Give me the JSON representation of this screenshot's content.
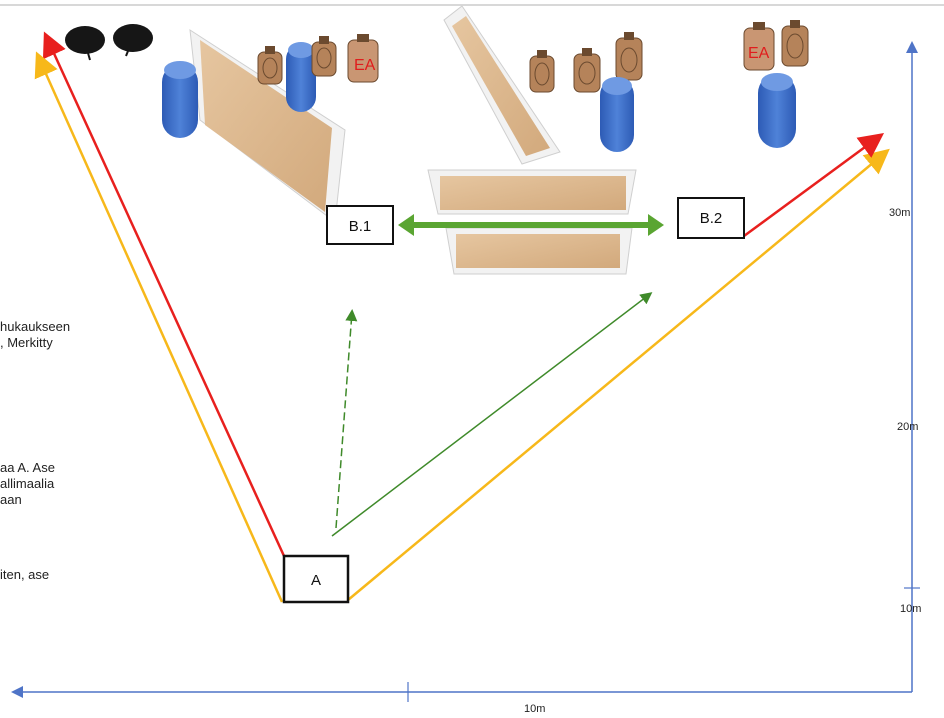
{
  "positions": {
    "A": "A",
    "B1": "B.1",
    "B2": "B.2"
  },
  "distances": {
    "d30_right": "30m",
    "d20_right": "20m",
    "d10_right": "10m",
    "d10_bottom": "10m"
  },
  "target_marks": {
    "left_group": "EA",
    "right_group": "EA"
  },
  "side_text": [
    [
      "hukaukseen",
      ", Merkitty"
    ],
    [
      "aa A. Ase",
      "allimaalia",
      "aan"
    ],
    [
      "iten, ase"
    ]
  ],
  "colors": {
    "red_path": "#e8201e",
    "yellow_path": "#f7b81a",
    "green_move": "#5aa532",
    "blue_axis": "#4f74c7",
    "target_brown": "#b5835a",
    "barrel_blue": "#3e6fc7",
    "wall_tan": "#d9b48c"
  }
}
